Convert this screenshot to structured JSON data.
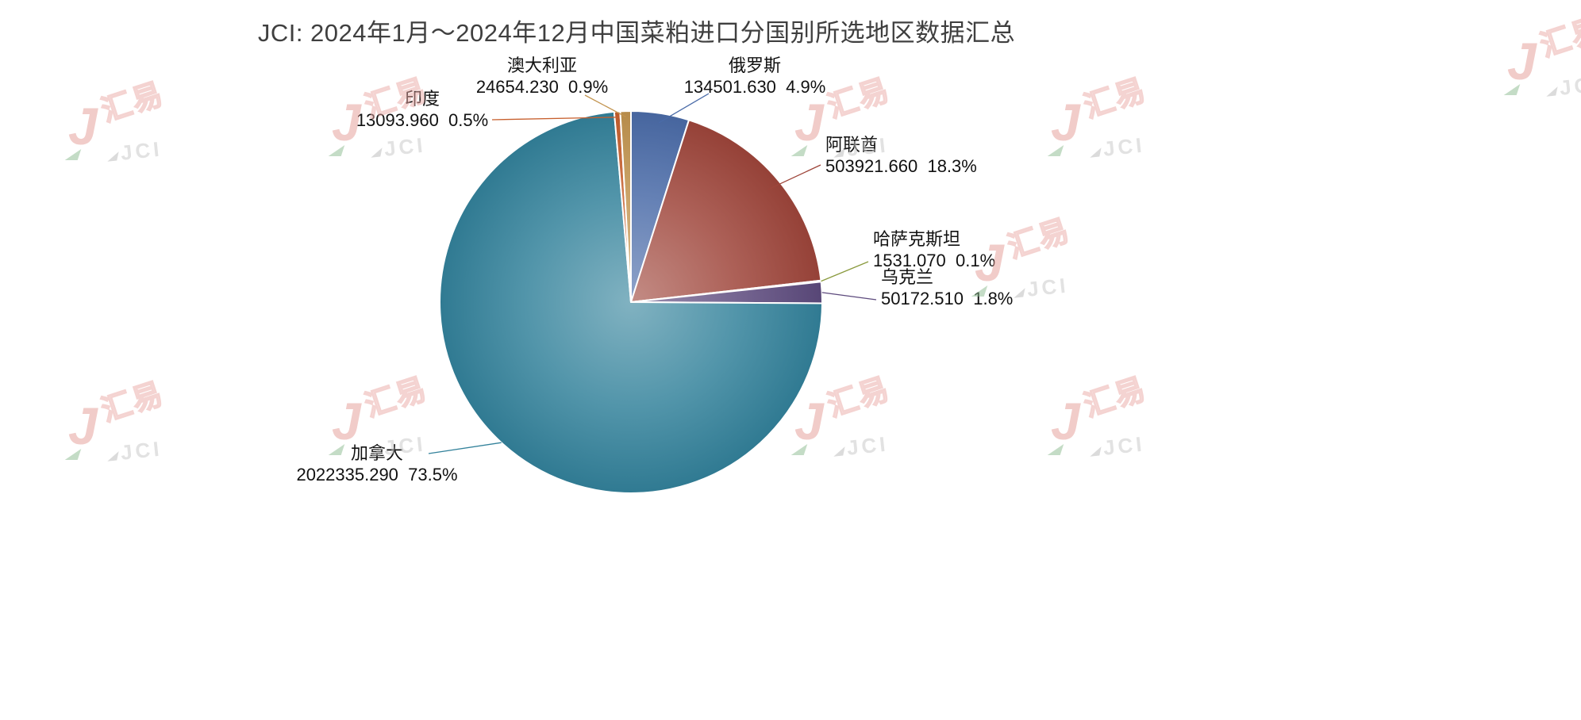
{
  "title": "JCI: 2024年1月～2024年12月中国菜粕进口分国别所选地区数据汇总",
  "watermark": {
    "hanzi": "汇易",
    "latin": "JCI",
    "j_glyph": "J"
  },
  "chart_data": {
    "type": "pie",
    "title": "JCI: 2024年1月～2024年12月中国菜粕进口分国别所选地区数据汇总",
    "start_angle_deg": 0,
    "direction": "clockwise",
    "legend_position": "none",
    "label_style": "callout-with-leader-lines",
    "series": [
      {
        "name": "俄罗斯",
        "value": 134501.63,
        "value_label": "134501.630",
        "pct": 4.9,
        "pct_label": "4.9%",
        "color": "#4a6ba8"
      },
      {
        "name": "阿联酋",
        "value": 503921.66,
        "value_label": "503921.660",
        "pct": 18.3,
        "pct_label": "18.3%",
        "color": "#9e453a"
      },
      {
        "name": "哈萨克斯坦",
        "value": 1531.07,
        "value_label": "1531.070",
        "pct": 0.1,
        "pct_label": "0.1%",
        "color": "#8a9a3e"
      },
      {
        "name": "乌克兰",
        "value": 50172.51,
        "value_label": "50172.510",
        "pct": 1.8,
        "pct_label": "1.8%",
        "color": "#5d4a7d"
      },
      {
        "name": "加拿大",
        "value": 2022335.29,
        "value_label": "2022335.290",
        "pct": 73.5,
        "pct_label": "73.5%",
        "color": "#33829b"
      },
      {
        "name": "印度",
        "value": 13093.96,
        "value_label": "13093.960",
        "pct": 0.5,
        "pct_label": "0.5%",
        "color": "#c75f2d"
      },
      {
        "name": "澳大利亚",
        "value": 24654.23,
        "value_label": "24654.230",
        "pct": 0.9,
        "pct_label": "0.9%",
        "color": "#c2944f"
      }
    ]
  }
}
